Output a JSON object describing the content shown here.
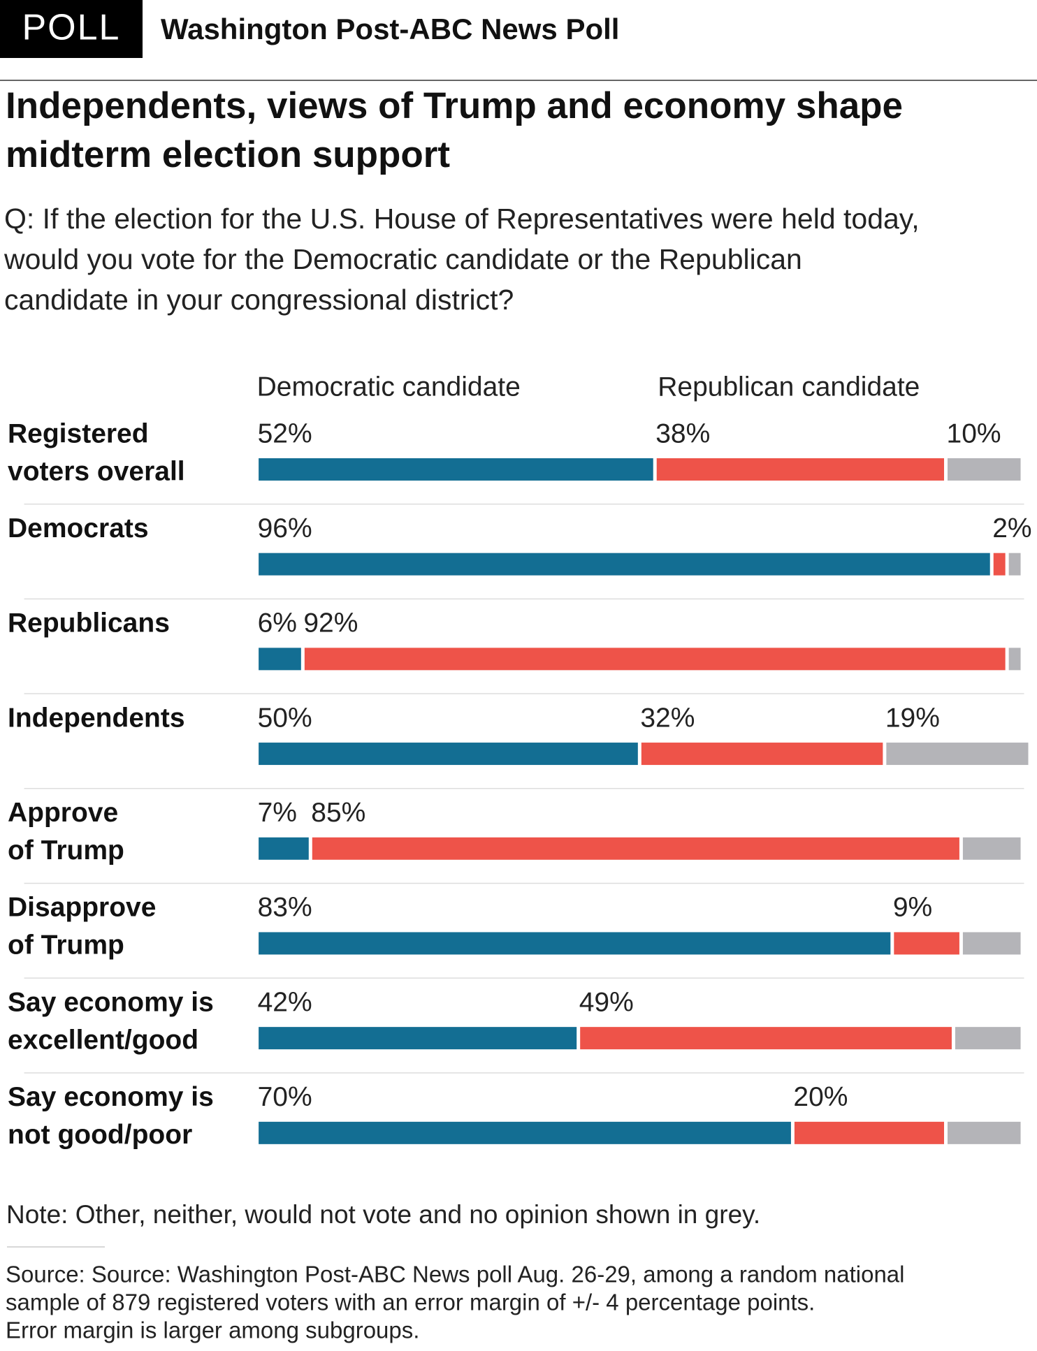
{
  "header": {
    "badge": "POLL",
    "title": "Washington Post-ABC News Poll"
  },
  "chart_data": {
    "type": "stacked-bar",
    "title": [
      "Independents, views of Trump and economy shape",
      "midterm election support"
    ],
    "subtitle": [
      "Q: If the election for the U.S. House of Representatives were held today,",
      "would you vote for the Democratic candidate or the Republican",
      "candidate in your congressional district?"
    ],
    "categories": [
      [
        "Registered",
        "voters overall"
      ],
      [
        "Democrats"
      ],
      [
        "Republicans"
      ],
      [
        "Independents"
      ],
      [
        "Approve",
        "of Trump"
      ],
      [
        "Disapprove",
        "of Trump"
      ],
      [
        "Say economy is",
        "excellent/good"
      ],
      [
        "Say economy is",
        "not good/poor"
      ]
    ],
    "xlim": [
      0,
      100
    ],
    "series": [
      {
        "name": "Democratic candidate",
        "color": "#136e93",
        "values": [
          52,
          96,
          6,
          50,
          7,
          83,
          42,
          70
        ],
        "value_labels": [
          "52%",
          "96%",
          "6%",
          "50%",
          "7%",
          "83%",
          "42%",
          "70%"
        ]
      },
      {
        "name": "Republican candidate",
        "color": "#ee5349",
        "values": [
          38,
          2,
          92,
          32,
          85,
          9,
          49,
          20
        ],
        "value_labels": [
          "38%",
          "2%",
          "92%",
          "32%",
          "85%",
          "9%",
          "49%",
          "20%"
        ]
      },
      {
        "color": "#b4b4b8",
        "values": [
          10,
          2,
          2,
          19,
          8,
          8,
          9,
          10
        ],
        "value_labels": [
          "10%",
          null,
          null,
          "19%",
          null,
          null,
          null,
          null
        ]
      }
    ],
    "note": "Note: Other, neither, would not vote and no opinion shown in grey.",
    "source": [
      "Source: Source: Washington Post-ABC News poll Aug. 26-29, among a random national",
      "sample of 879 registered voters with an error margin of +/- 4 percentage points.",
      "Error margin is larger among subgroups."
    ]
  }
}
